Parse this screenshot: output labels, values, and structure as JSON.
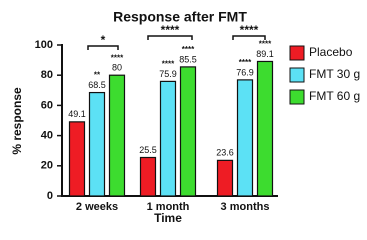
{
  "chart_data": {
    "type": "bar",
    "title": "Response after FMT",
    "x_label": "Time",
    "y_label": "% response",
    "categories": [
      "2 weeks",
      "1 month",
      "3 months"
    ],
    "series": [
      {
        "name": "Placebo",
        "color": "#ee1c24",
        "values": [
          49.1,
          25.5,
          23.6
        ]
      },
      {
        "name": "FMT 30 g",
        "color": "#5ce1f5",
        "values": [
          68.5,
          75.9,
          76.9
        ],
        "stars": [
          "**",
          "****",
          "****"
        ]
      },
      {
        "name": "FMT 60 g",
        "color": "#3ddc2f",
        "values": [
          80,
          85.5,
          89.1
        ],
        "stars": [
          "****",
          "****",
          "****"
        ]
      }
    ],
    "brackets": [
      "*",
      "****",
      "****"
    ],
    "ylim": [
      0,
      100
    ],
    "yticks": [
      0,
      20,
      40,
      60,
      80,
      100
    ],
    "legend": "right"
  }
}
